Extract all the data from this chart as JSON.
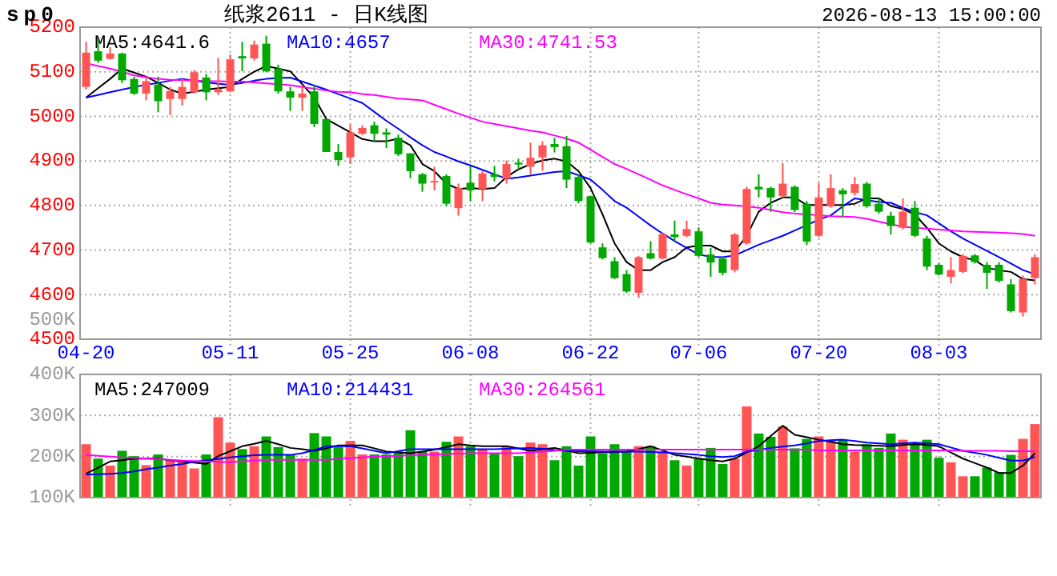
{
  "chart_data": [
    {
      "type": "candlestick",
      "title": "纸浆2611 - 日K线图",
      "subtitle": "sp0",
      "annotations": [
        "2026-08-13 15:00:00",
        "500K"
      ],
      "categories": [
        "04-20",
        null,
        null,
        null,
        null,
        null,
        null,
        null,
        null,
        null,
        null,
        null,
        "05-11",
        null,
        null,
        null,
        null,
        null,
        null,
        null,
        null,
        null,
        "05-25",
        null,
        null,
        null,
        null,
        null,
        null,
        null,
        null,
        null,
        "06-08",
        null,
        null,
        null,
        null,
        null,
        null,
        null,
        null,
        null,
        "06-22",
        null,
        null,
        null,
        null,
        null,
        null,
        null,
        null,
        "07-06",
        null,
        null,
        null,
        null,
        null,
        null,
        null,
        null,
        null,
        "07-20",
        null,
        null,
        null,
        null,
        null,
        null,
        null,
        null,
        null,
        "08-03",
        null,
        null,
        null,
        null,
        null,
        null,
        null,
        null
      ],
      "ohlc": [
        [
          5066,
          5167,
          5060,
          5143
        ],
        [
          5146,
          5173,
          5120,
          5125
        ],
        [
          5129,
          5155,
          5127,
          5141
        ],
        [
          5141,
          5143,
          5075,
          5081
        ],
        [
          5084,
          5089,
          5048,
          5051
        ],
        [
          5051,
          5086,
          5036,
          5079
        ],
        [
          5071,
          5089,
          5009,
          5034
        ],
        [
          5039,
          5066,
          5003,
          5057
        ],
        [
          5039,
          5084,
          5024,
          5066
        ],
        [
          5054,
          5104,
          5051,
          5099
        ],
        [
          5087,
          5095,
          5036,
          5054
        ],
        [
          5054,
          5131,
          5048,
          5061
        ],
        [
          5056,
          5139,
          5054,
          5128
        ],
        [
          5135,
          5167,
          5101,
          5130
        ],
        [
          5130,
          5170,
          5125,
          5161
        ],
        [
          5163,
          5181,
          5099,
          5101
        ],
        [
          5107,
          5116,
          5051,
          5056
        ],
        [
          5056,
          5066,
          5012,
          5042
        ],
        [
          5042,
          5070,
          5012,
          5051
        ],
        [
          5056,
          5071,
          4976,
          4983
        ],
        [
          4994,
          4994,
          4920,
          4920
        ],
        [
          4920,
          4938,
          4889,
          4902
        ],
        [
          4908,
          4982,
          4893,
          4964
        ],
        [
          4961,
          4980,
          4958,
          4974
        ],
        [
          4980,
          4988,
          4944,
          4961
        ],
        [
          4964,
          4973,
          4929,
          4959
        ],
        [
          4952,
          4959,
          4911,
          4915
        ],
        [
          4917,
          4917,
          4861,
          4877
        ],
        [
          4870,
          4873,
          4831,
          4849
        ],
        [
          4852,
          4887,
          4834,
          4855
        ],
        [
          4866,
          4870,
          4798,
          4804
        ],
        [
          4794,
          4849,
          4777,
          4839
        ],
        [
          4851,
          4887,
          4810,
          4834
        ],
        [
          4837,
          4878,
          4810,
          4872
        ],
        [
          4870,
          4889,
          4854,
          4864
        ],
        [
          4860,
          4901,
          4849,
          4893
        ],
        [
          4896,
          4905,
          4881,
          4892
        ],
        [
          4887,
          4941,
          4870,
          4907
        ],
        [
          4908,
          4944,
          4878,
          4935
        ],
        [
          4938,
          4952,
          4919,
          4931
        ],
        [
          4933,
          4956,
          4839,
          4858
        ],
        [
          4864,
          4870,
          4805,
          4810
        ],
        [
          4821,
          4821,
          4715,
          4717
        ],
        [
          4706,
          4715,
          4679,
          4682
        ],
        [
          4675,
          4684,
          4635,
          4637
        ],
        [
          4646,
          4655,
          4604,
          4607
        ],
        [
          4604,
          4687,
          4593,
          4684
        ],
        [
          4693,
          4720,
          4679,
          4681
        ],
        [
          4681,
          4738,
          4679,
          4736
        ],
        [
          4735,
          4766,
          4720,
          4729
        ],
        [
          4732,
          4766,
          4729,
          4747
        ],
        [
          4742,
          4751,
          4684,
          4687
        ],
        [
          4690,
          4705,
          4640,
          4672
        ],
        [
          4681,
          4684,
          4643,
          4649
        ],
        [
          4655,
          4738,
          4650,
          4735
        ],
        [
          4715,
          4842,
          4712,
          4837
        ],
        [
          4842,
          4870,
          4818,
          4836
        ],
        [
          4839,
          4842,
          4786,
          4818
        ],
        [
          4821,
          4895,
          4818,
          4849
        ],
        [
          4842,
          4845,
          4785,
          4790
        ],
        [
          4804,
          4810,
          4711,
          4719
        ],
        [
          4732,
          4851,
          4729,
          4818
        ],
        [
          4798,
          4870,
          4795,
          4839
        ],
        [
          4834,
          4839,
          4774,
          4825
        ],
        [
          4828,
          4864,
          4822,
          4848
        ],
        [
          4849,
          4853,
          4795,
          4798
        ],
        [
          4804,
          4816,
          4782,
          4786
        ],
        [
          4777,
          4786,
          4735,
          4754
        ],
        [
          4750,
          4816,
          4746,
          4786
        ],
        [
          4795,
          4810,
          4729,
          4732
        ],
        [
          4726,
          4732,
          4655,
          4663
        ],
        [
          4667,
          4670,
          4643,
          4645
        ],
        [
          4640,
          4684,
          4625,
          4655
        ],
        [
          4651,
          4691,
          4648,
          4687
        ],
        [
          4688,
          4691,
          4670,
          4673
        ],
        [
          4667,
          4673,
          4613,
          4649
        ],
        [
          4667,
          4673,
          4627,
          4631
        ],
        [
          4623,
          4635,
          4560,
          4563
        ],
        [
          4560,
          4643,
          4551,
          4635
        ],
        [
          4637,
          4691,
          4623,
          4684
        ]
      ],
      "colors": [
        "#ff5555",
        "#00a800",
        "#ff5555",
        "#00a800",
        "#00a800",
        "#ff5555",
        "#00a800",
        "#ff5555",
        "#ff5555",
        "#ff5555",
        "#00a800",
        "#ff5555",
        "#ff5555",
        "#00a800",
        "#ff5555",
        "#00a800",
        "#00a800",
        "#00a800",
        "#ff5555",
        "#00a800",
        "#00a800",
        "#00a800",
        "#ff5555",
        "#ff5555",
        "#00a800",
        "#00a800",
        "#00a800",
        "#00a800",
        "#00a800",
        "#ff5555",
        "#00a800",
        "#ff5555",
        "#00a800",
        "#ff5555",
        "#00a800",
        "#ff5555",
        "#00a800",
        "#ff5555",
        "#ff5555",
        "#00a800",
        "#00a800",
        "#00a800",
        "#00a800",
        "#00a800",
        "#00a800",
        "#00a800",
        "#ff5555",
        "#00a800",
        "#ff5555",
        "#00a800",
        "#ff5555",
        "#00a800",
        "#00a800",
        "#00a800",
        "#ff5555",
        "#ff5555",
        "#00a800",
        "#00a800",
        "#ff5555",
        "#00a800",
        "#00a800",
        "#ff5555",
        "#ff5555",
        "#00a800",
        "#ff5555",
        "#00a800",
        "#00a800",
        "#00a800",
        "#ff5555",
        "#00a800",
        "#00a800",
        "#00a800",
        "#ff5555",
        "#ff5555",
        "#00a800",
        "#00a800",
        "#00a800",
        "#00a800",
        "#ff5555",
        "#ff5555"
      ],
      "series": [
        {
          "type": "line",
          "name": "MA5:4641.6",
          "color": "#000000",
          "values": [
            5042,
            5063,
            5084,
            5107,
            5098,
            5089,
            5075,
            5060,
            5051,
            5055,
            5060,
            5063,
            5066,
            5084,
            5100,
            5113,
            5107,
            5101,
            5072,
            5042,
            4994,
            4979,
            4964,
            4949,
            4944,
            4944,
            4950,
            4935,
            4893,
            4877,
            4849,
            4837,
            4839,
            4837,
            4839,
            4864,
            4881,
            4893,
            4901,
            4905,
            4899,
            4877,
            4839,
            4780,
            4715,
            4673,
            4655,
            4655,
            4673,
            4684,
            4706,
            4710,
            4710,
            4697,
            4697,
            4732,
            4786,
            4806,
            4818,
            4818,
            4801,
            4801,
            4801,
            4801,
            4804,
            4816,
            4816,
            4799,
            4792,
            4780,
            4750,
            4715,
            4697,
            4684,
            4677,
            4660,
            4655,
            4651,
            4635,
            4632
          ]
        },
        {
          "type": "line",
          "name": "MA10:4657",
          "color": "#0000ff",
          "values": [
            5042,
            5048,
            5054,
            5060,
            5066,
            5071,
            5075,
            5080,
            5084,
            5080,
            5076,
            5073,
            5071,
            5075,
            5080,
            5084,
            5086,
            5087,
            5078,
            5069,
            5060,
            5050,
            5040,
            5030,
            5010,
            4990,
            4972,
            4953,
            4935,
            4920,
            4910,
            4899,
            4890,
            4880,
            4870,
            4860,
            4863,
            4867,
            4871,
            4875,
            4877,
            4868,
            4858,
            4835,
            4810,
            4795,
            4775,
            4755,
            4737,
            4720,
            4705,
            4690,
            4685,
            4684,
            4688,
            4700,
            4712,
            4722,
            4732,
            4744,
            4756,
            4768,
            4778,
            4798,
            4816,
            4812,
            4808,
            4806,
            4795,
            4785,
            4778,
            4760,
            4742,
            4726,
            4712,
            4698,
            4684,
            4670,
            4655,
            4646
          ]
        },
        {
          "type": "line",
          "name": "MA30:4741.53",
          "color": "#ff00ff",
          "values": [
            5119,
            5113,
            5107,
            5100,
            5092,
            5088,
            5084,
            5082,
            5081,
            5080,
            5079,
            5079,
            5078,
            5078,
            5076,
            5074,
            5072,
            5070,
            5066,
            5062,
            5058,
            5055,
            5054,
            5050,
            5048,
            5044,
            5040,
            5038,
            5036,
            5026,
            5016,
            5006,
            4997,
            4988,
            4983,
            4978,
            4973,
            4968,
            4964,
            4957,
            4950,
            4941,
            4925,
            4909,
            4893,
            4882,
            4870,
            4858,
            4845,
            4835,
            4825,
            4816,
            4806,
            4802,
            4800,
            4798,
            4795,
            4790,
            4785,
            4782,
            4780,
            4778,
            4776,
            4775,
            4774,
            4770,
            4764,
            4758,
            4752,
            4750,
            4748,
            4746,
            4744,
            4742,
            4741,
            4740,
            4739,
            4738,
            4736,
            4732
          ]
        }
      ],
      "ylim": [
        4500,
        5200
      ],
      "yticks": [
        4500,
        4600,
        4700,
        4800,
        4900,
        5000,
        5100,
        5200
      ],
      "grid": true,
      "legend": "top left"
    },
    {
      "type": "bar",
      "categories": [
        null,
        null,
        null,
        null,
        null,
        null,
        null,
        null,
        null,
        null,
        null,
        null,
        null,
        null,
        null,
        null,
        null,
        null,
        null,
        null,
        null,
        null,
        null,
        null,
        null,
        null,
        null,
        null,
        null,
        null,
        null,
        null,
        null,
        null,
        null,
        null,
        null,
        null,
        null,
        null,
        null,
        null,
        null,
        null,
        null,
        null,
        null,
        null,
        null,
        null,
        null,
        null,
        null,
        null,
        null,
        null,
        null,
        null,
        null,
        null,
        null,
        null,
        null,
        null,
        null,
        null,
        null,
        null,
        null,
        null,
        null,
        null,
        null,
        null,
        null,
        null,
        null,
        null,
        null,
        null
      ],
      "values": [
        230000,
        195000,
        178000,
        214000,
        201000,
        179000,
        205000,
        192000,
        192000,
        171000,
        205000,
        296000,
        234000,
        218000,
        225000,
        249000,
        223000,
        205000,
        195000,
        257000,
        249000,
        223000,
        238000,
        205000,
        205000,
        205000,
        212000,
        264000,
        212000,
        212000,
        236000,
        249000,
        225000,
        218000,
        207000,
        225000,
        201000,
        234000,
        230000,
        191000,
        225000,
        178000,
        249000,
        207000,
        230000,
        212000,
        225000,
        225000,
        212000,
        191000,
        178000,
        195000,
        221000,
        182000,
        195000,
        322000,
        256000,
        248000,
        273000,
        220000,
        243000,
        249000,
        238000,
        241000,
        212000,
        230000,
        221000,
        256000,
        241000,
        234000,
        241000,
        197000,
        186000,
        152000,
        152000,
        173000,
        162000,
        204000,
        243000,
        279000
      ],
      "colors": [
        "#ff5555",
        "#00a800",
        "#ff5555",
        "#00a800",
        "#00a800",
        "#ff5555",
        "#00a800",
        "#ff5555",
        "#ff5555",
        "#ff5555",
        "#00a800",
        "#ff5555",
        "#ff5555",
        "#00a800",
        "#ff5555",
        "#00a800",
        "#00a800",
        "#00a800",
        "#ff5555",
        "#00a800",
        "#00a800",
        "#00a800",
        "#ff5555",
        "#ff5555",
        "#00a800",
        "#00a800",
        "#00a800",
        "#00a800",
        "#00a800",
        "#ff5555",
        "#00a800",
        "#ff5555",
        "#00a800",
        "#ff5555",
        "#00a800",
        "#ff5555",
        "#00a800",
        "#ff5555",
        "#ff5555",
        "#00a800",
        "#00a800",
        "#00a800",
        "#00a800",
        "#00a800",
        "#00a800",
        "#00a800",
        "#ff5555",
        "#00a800",
        "#ff5555",
        "#00a800",
        "#ff5555",
        "#00a800",
        "#00a800",
        "#00a800",
        "#ff5555",
        "#ff5555",
        "#00a800",
        "#00a800",
        "#ff5555",
        "#00a800",
        "#00a800",
        "#ff5555",
        "#ff5555",
        "#00a800",
        "#ff5555",
        "#00a800",
        "#00a800",
        "#00a800",
        "#ff5555",
        "#00a800",
        "#00a800",
        "#00a800",
        "#ff5555",
        "#ff5555",
        "#00a800",
        "#00a800",
        "#00a800",
        "#00a800",
        "#ff5555",
        "#ff5555"
      ],
      "series": [
        {
          "type": "line",
          "name": "MA5:247009",
          "color": "#000000",
          "values": [
            158000,
            173000,
            188000,
            191000,
            195000,
            195000,
            195000,
            191000,
            188000,
            185000,
            182000,
            201000,
            213000,
            225000,
            231000,
            238000,
            230000,
            221000,
            218000,
            214000,
            220000,
            227000,
            227000,
            227000,
            220000,
            212000,
            210000,
            208000,
            212000,
            217000,
            223000,
            230000,
            227000,
            225000,
            225000,
            225000,
            220000,
            214000,
            218000,
            221000,
            215000,
            208000,
            209000,
            210000,
            211000,
            212000,
            218000,
            225000,
            215000,
            204000,
            200000,
            195000,
            191000,
            188000,
            195000,
            210000,
            225000,
            250000,
            275000,
            253000,
            247000,
            241000,
            236000,
            230000,
            228000,
            227000,
            226000,
            225000,
            228000,
            230000,
            228000,
            225000,
            210000,
            195000,
            184000,
            173000,
            160000,
            160000,
            178000,
            208000
          ]
        },
        {
          "type": "line",
          "name": "MA10:214431",
          "color": "#0000ff",
          "values": [
            156000,
            157000,
            158000,
            160000,
            164000,
            169000,
            173000,
            178000,
            182000,
            187000,
            191000,
            194000,
            198000,
            201000,
            203000,
            204000,
            204000,
            204000,
            208000,
            216000,
            225000,
            225000,
            225000,
            220000,
            214000,
            208000,
            213000,
            218000,
            218000,
            218000,
            218000,
            218000,
            218000,
            218000,
            218000,
            219000,
            220000,
            221000,
            219000,
            216000,
            214000,
            213000,
            213000,
            212000,
            212000,
            212000,
            212000,
            211000,
            210000,
            208000,
            206000,
            204000,
            201000,
            199000,
            201000,
            212000,
            216000,
            221000,
            224000,
            227000,
            232000,
            238000,
            240000,
            241000,
            238000,
            234000,
            232000,
            230000,
            232000,
            234000,
            232000,
            230000,
            222000,
            214000,
            209000,
            204000,
            197000,
            190000,
            190000,
            199000
          ]
        },
        {
          "type": "line",
          "name": "MA30:264561",
          "color": "#ff00ff",
          "values": [
            204000,
            202000,
            200000,
            198000,
            197000,
            195000,
            194000,
            192000,
            190000,
            189000,
            188000,
            187000,
            186000,
            188000,
            190000,
            192000,
            192000,
            192000,
            192000,
            192000,
            192000,
            194000,
            196000,
            198000,
            200000,
            201000,
            202000,
            203000,
            204000,
            205000,
            206000,
            207000,
            208000,
            208000,
            208000,
            208000,
            208000,
            210000,
            212000,
            214000,
            217000,
            217000,
            217000,
            217000,
            217000,
            217000,
            217000,
            217000,
            217000,
            217000,
            217000,
            217000,
            217000,
            217000,
            217000,
            217000,
            217000,
            217000,
            217000,
            217000,
            217000,
            215000,
            215000,
            215000,
            215000,
            215000,
            215000,
            215000,
            215000,
            215000,
            215000,
            215000,
            215000,
            214000,
            214000,
            214000,
            214000,
            213000,
            213000,
            213000
          ]
        }
      ],
      "ylim": [
        100000,
        400000
      ],
      "yticks": [
        {
          "value": 100000,
          "label": "100K"
        },
        {
          "value": 200000,
          "label": "200K"
        },
        {
          "value": 300000,
          "label": "300K"
        },
        {
          "value": 400000,
          "label": "400K"
        }
      ],
      "grid": true,
      "legend": "top left"
    }
  ]
}
